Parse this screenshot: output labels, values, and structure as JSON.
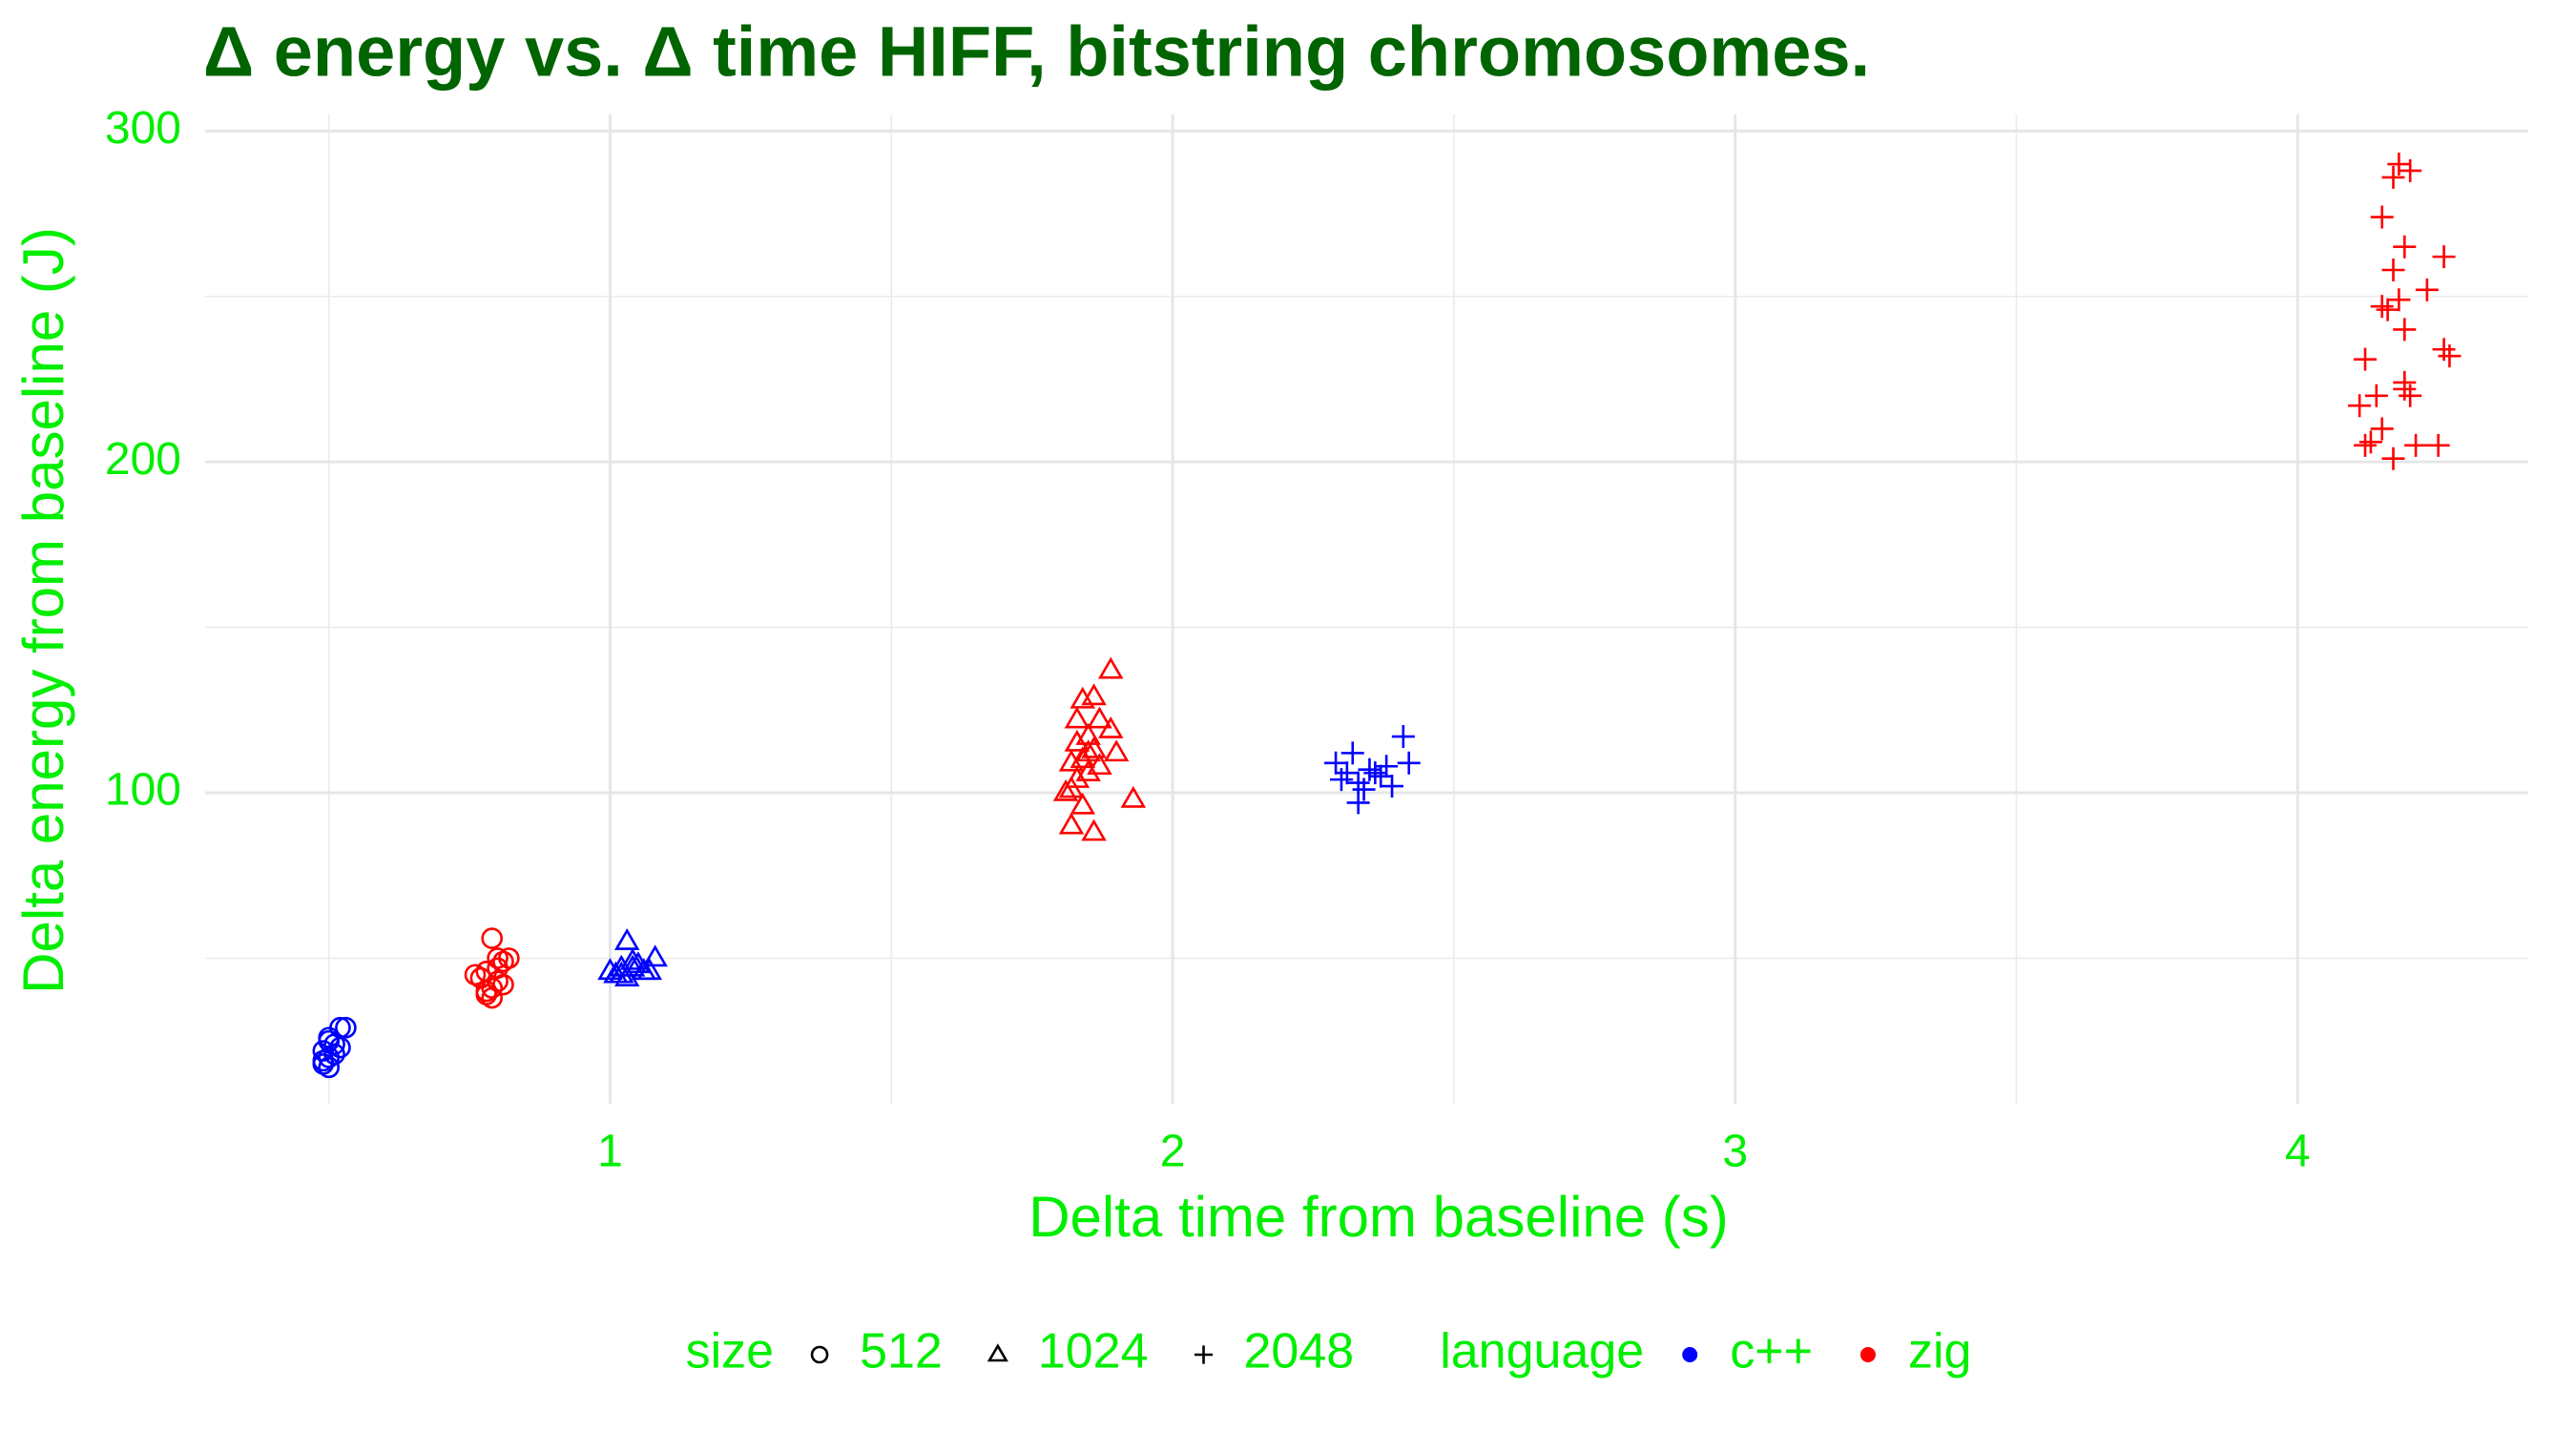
{
  "chart_data": {
    "type": "scatter",
    "title": "Δ energy vs. Δ time HIFF, bitstring chromosomes.",
    "x_label": "Delta time from baseline (s)",
    "y_label": "Delta energy from baseline (J)",
    "xlim": [
      0.28,
      4.41
    ],
    "ylim": [
      6,
      305
    ],
    "xticks": [
      1,
      2,
      3,
      4
    ],
    "yticks": [
      100,
      200,
      300
    ],
    "minor_xticks": [
      0.5,
      1.5,
      2.5,
      3.5
    ],
    "minor_yticks": [
      50,
      150,
      250
    ],
    "grid": true,
    "legend": {
      "position": "bottom",
      "groups": [
        {
          "title": "size",
          "items": [
            {
              "label": "512",
              "shape": "circle"
            },
            {
              "label": "1024",
              "shape": "triangle"
            },
            {
              "label": "2048",
              "shape": "plus"
            }
          ]
        },
        {
          "title": "language",
          "items": [
            {
              "label": "c++",
              "color": "#0000ff"
            },
            {
              "label": "zig",
              "color": "#ff0000"
            }
          ]
        }
      ]
    },
    "series": [
      {
        "color": "#0000ff",
        "shape": "circle",
        "x": [
          0.49,
          0.5,
          0.49,
          0.51,
          0.5,
          0.52,
          0.53,
          0.49,
          0.51,
          0.5,
          0.52,
          0.5
        ],
        "values": [
          18,
          20,
          22,
          24,
          26,
          29,
          29,
          19,
          21,
          17,
          23,
          25
        ]
      },
      {
        "color": "#ff0000",
        "shape": "circle",
        "x": [
          0.79,
          0.8,
          0.81,
          0.78,
          0.77,
          0.8,
          0.79,
          0.78,
          0.81,
          0.76,
          0.8,
          0.79,
          0.82,
          0.78
        ],
        "values": [
          56,
          50,
          49,
          46,
          44,
          43,
          41,
          39,
          42,
          45,
          47,
          38,
          50,
          40
        ]
      },
      {
        "color": "#0000ff",
        "shape": "triangle",
        "x": [
          1.03,
          1.08,
          1.0,
          1.02,
          1.04,
          1.05,
          1.06,
          1.03,
          1.01,
          1.07,
          1.04,
          1.02
        ],
        "values": [
          55,
          50,
          46,
          45,
          47,
          48,
          46,
          44,
          45,
          46,
          49,
          47
        ]
      },
      {
        "color": "#ff0000",
        "shape": "triangle",
        "x": [
          1.89,
          1.86,
          1.84,
          1.83,
          1.87,
          1.89,
          1.85,
          1.83,
          1.86,
          1.84,
          1.82,
          1.87,
          1.85,
          1.83,
          1.82,
          1.81,
          1.84,
          1.82,
          1.86,
          1.93,
          1.85,
          1.9
        ],
        "values": [
          137,
          129,
          128,
          122,
          122,
          119,
          117,
          115,
          113,
          110,
          109,
          108,
          106,
          104,
          101,
          100,
          96,
          90,
          88,
          98,
          112,
          112
        ]
      },
      {
        "color": "#0000ff",
        "shape": "plus",
        "x": [
          2.41,
          2.32,
          2.29,
          2.35,
          2.38,
          2.42,
          2.3,
          2.33,
          2.34,
          2.37,
          2.39,
          2.33,
          2.36,
          2.31
        ],
        "values": [
          117,
          112,
          109,
          107,
          108,
          109,
          104,
          103,
          101,
          105,
          102,
          97,
          106,
          106
        ]
      },
      {
        "color": "#ff0000",
        "shape": "plus",
        "x": [
          4.18,
          4.17,
          4.2,
          4.15,
          4.19,
          4.26,
          4.17,
          4.23,
          4.18,
          4.15,
          4.16,
          4.19,
          4.26,
          4.27,
          4.12,
          4.19,
          4.2,
          4.14,
          4.11,
          4.15,
          4.12,
          4.21,
          4.25,
          4.17,
          4.13,
          4.19
        ],
        "values": [
          290,
          286,
          288,
          274,
          265,
          262,
          258,
          252,
          249,
          247,
          246,
          240,
          234,
          232,
          231,
          224,
          220,
          220,
          217,
          210,
          205,
          205,
          205,
          201,
          206,
          222
        ]
      }
    ]
  }
}
